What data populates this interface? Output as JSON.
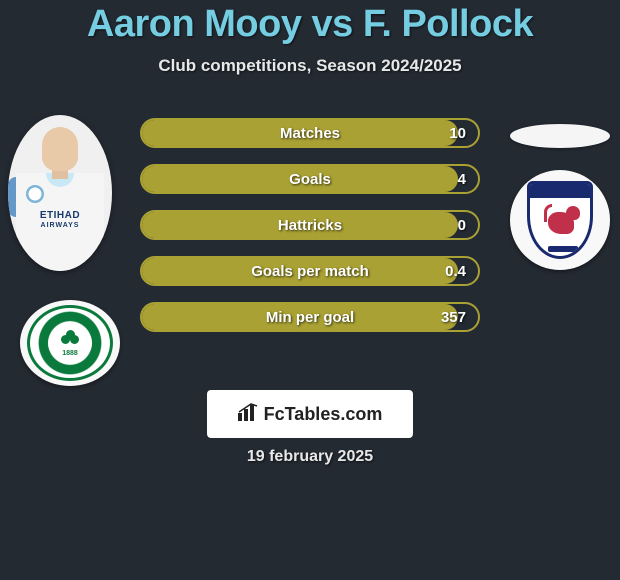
{
  "title": "Aaron Mooy vs F. Pollock",
  "subtitle": "Club competitions, Season 2024/2025",
  "player_left": {
    "name": "Aaron Mooy",
    "jersey_sponsor": "ETIHAD",
    "jersey_sponsor_sub": "AIRWAYS",
    "club": "Celtic FC",
    "club_founded": "1888"
  },
  "player_right": {
    "name": "F. Pollock",
    "club": "Raith Rovers"
  },
  "stats": [
    {
      "label": "Matches",
      "value": "10",
      "fill_pct": 94
    },
    {
      "label": "Goals",
      "value": "4",
      "fill_pct": 94
    },
    {
      "label": "Hattricks",
      "value": "0",
      "fill_pct": 94
    },
    {
      "label": "Goals per match",
      "value": "0.4",
      "fill_pct": 94
    },
    {
      "label": "Min per goal",
      "value": "357",
      "fill_pct": 94
    }
  ],
  "style": {
    "title_color": "#75cde2",
    "bg_color": "#242a32",
    "bar_border_color": "#a9a133",
    "bar_fill_color": "#a9a133",
    "text_color": "#ffffff",
    "subtitle_color": "#e8e8e8"
  },
  "footer": {
    "brand": "FcTables.com",
    "date": "19 february 2025"
  }
}
